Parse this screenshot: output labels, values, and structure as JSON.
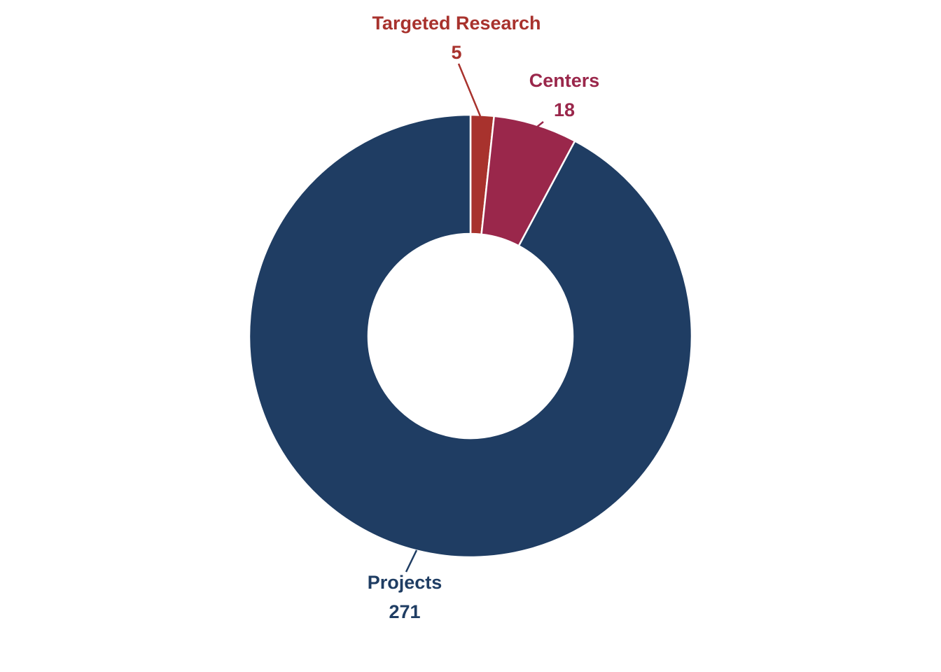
{
  "chart_data": {
    "type": "pie",
    "variant": "donut",
    "title": "",
    "start": "top, clockwise",
    "slices": [
      {
        "label": "Targeted Research",
        "value": 5,
        "display_value": "5",
        "color": "#a8322d"
      },
      {
        "label": "Centers",
        "value": 18,
        "display_value": "18",
        "color": "#9a274b"
      },
      {
        "label": "Projects",
        "value": 271,
        "display_value": "271",
        "color": "#1f3d63"
      }
    ],
    "separator_color": "#ffffff",
    "legend": "none"
  }
}
